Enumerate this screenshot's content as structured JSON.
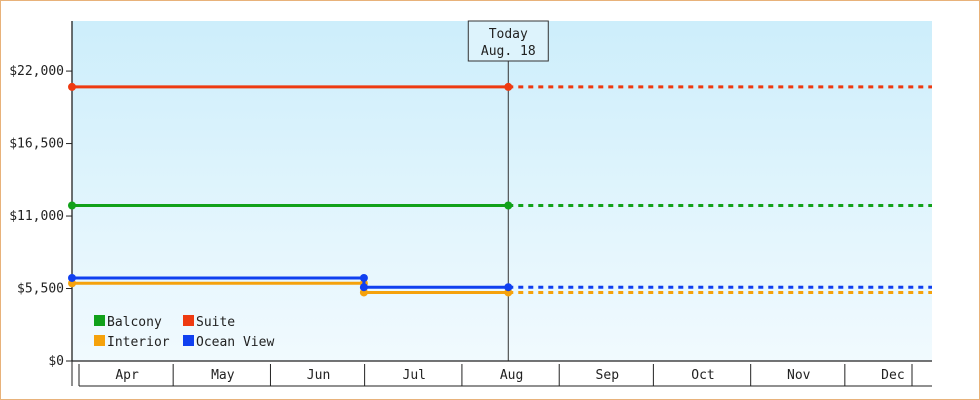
{
  "chart_data": {
    "type": "line",
    "subtype": "step",
    "y_ticks": [
      {
        "value": 0,
        "label": "$0"
      },
      {
        "value": 5500,
        "label": "$5,500"
      },
      {
        "value": 11000,
        "label": "$11,000"
      },
      {
        "value": 16500,
        "label": "$16,500"
      },
      {
        "value": 22000,
        "label": "$22,000"
      }
    ],
    "ylim": [
      0,
      25800
    ],
    "x_categories": [
      "Apr",
      "May",
      "Jun",
      "Jul",
      "Aug",
      "Sep",
      "Oct",
      "Nov",
      "Dec"
    ],
    "xlim": [
      "2024-04-01",
      "2024-12-31"
    ],
    "today": {
      "date": "2024-08-18",
      "line1": "Today",
      "line2": "Aug. 18"
    },
    "grid": false,
    "legend_position": "bottom-left",
    "series": [
      {
        "name": "Balcony",
        "color": "#11a11a",
        "points": [
          {
            "x": "2024-04-01",
            "y": 11800
          },
          {
            "x": "2024-08-18",
            "y": 11800
          }
        ],
        "projection": {
          "from": "2024-08-18",
          "to": "2024-12-31",
          "y": 11800
        }
      },
      {
        "name": "Suite",
        "color": "#ee3a11",
        "points": [
          {
            "x": "2024-04-01",
            "y": 20800
          },
          {
            "x": "2024-08-18",
            "y": 20800
          }
        ],
        "projection": {
          "from": "2024-08-18",
          "to": "2024-12-31",
          "y": 20800
        }
      },
      {
        "name": "Interior",
        "color": "#f5a20c",
        "points": [
          {
            "x": "2024-04-01",
            "y": 5900
          },
          {
            "x": "2024-07-03",
            "y": 5900
          },
          {
            "x": "2024-07-03",
            "y": 5200
          },
          {
            "x": "2024-08-18",
            "y": 5200
          }
        ],
        "projection": {
          "from": "2024-08-18",
          "to": "2024-12-31",
          "y": 5200
        }
      },
      {
        "name": "Ocean View",
        "color": "#1040f0",
        "points": [
          {
            "x": "2024-04-01",
            "y": 6300
          },
          {
            "x": "2024-07-03",
            "y": 6300
          },
          {
            "x": "2024-07-03",
            "y": 5600
          },
          {
            "x": "2024-08-18",
            "y": 5600
          }
        ],
        "projection": {
          "from": "2024-08-18",
          "to": "2024-12-31",
          "y": 5600
        }
      }
    ],
    "legend_order": [
      "Balcony",
      "Suite",
      "Interior",
      "Ocean View"
    ]
  }
}
